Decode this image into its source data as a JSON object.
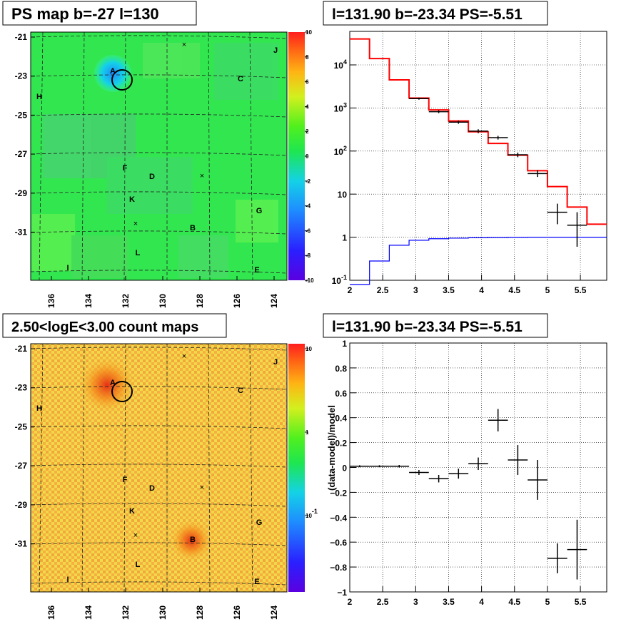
{
  "maps": [
    {
      "title": "PS map b=-27 l=130",
      "y_ticks": [
        "-21",
        "-23",
        "-25",
        "-27",
        "-29",
        "-31"
      ],
      "x_ticks": [
        "136",
        "134",
        "132",
        "130",
        "128",
        "126",
        "124"
      ],
      "colorbar_ticks": [
        "10",
        "8",
        "6",
        "4",
        "2",
        "0",
        "-2",
        "-4",
        "-6",
        "-8",
        "-10"
      ],
      "colorbar_scale": "linear",
      "sources": [
        "J",
        "C",
        "H",
        "F",
        "D",
        "K",
        "G",
        "B",
        "L",
        "I",
        "E",
        "A"
      ]
    },
    {
      "title": "2.50<logE<3.00 count maps",
      "y_ticks": [
        "-21",
        "-23",
        "-25",
        "-27",
        "-29",
        "-31"
      ],
      "x_ticks": [
        "136",
        "134",
        "132",
        "130",
        "128",
        "126",
        "124"
      ],
      "colorbar_ticks": [
        "10",
        "1",
        "10^-1"
      ],
      "colorbar_scale": "log",
      "sources": [
        "J",
        "C",
        "H",
        "F",
        "D",
        "K",
        "G",
        "B",
        "L",
        "I",
        "E",
        "A"
      ]
    }
  ],
  "chart_data": [
    {
      "type": "line",
      "title": "l=131.90 b=-23.34 PS=-5.51",
      "yscale": "log",
      "xlim": [
        2,
        5.9
      ],
      "ylim": [
        0.1,
        60000
      ],
      "grid": true,
      "x_ticks": [
        "2",
        "2.5",
        "3",
        "3.5",
        "4",
        "4.5",
        "5",
        "5.5"
      ],
      "y_ticks": [
        "10^-1",
        "1",
        "10",
        "10^2",
        "10^3",
        "10^4"
      ],
      "model_total": {
        "color": "#ff0000",
        "edges": [
          2.0,
          2.3,
          2.6,
          2.9,
          3.2,
          3.5,
          3.8,
          4.1,
          4.4,
          4.7,
          5.0,
          5.3,
          5.6,
          5.9
        ],
        "values": [
          40000,
          14000,
          4500,
          1700,
          900,
          500,
          280,
          150,
          80,
          35,
          15,
          5,
          2,
          2
        ]
      },
      "model_source": {
        "color": "#0000ff",
        "edges": [
          2.0,
          2.3,
          2.6,
          2.9,
          3.2,
          3.5,
          3.8,
          4.1,
          4.4,
          4.7,
          5.0,
          5.3,
          5.6,
          5.9
        ],
        "values": [
          0.08,
          0.28,
          0.65,
          0.85,
          0.92,
          0.95,
          0.97,
          0.98,
          0.99,
          1.0,
          1.0,
          1.0,
          1.0,
          1.0
        ]
      },
      "data_points": {
        "color": "#000000",
        "points": [
          {
            "x": 3.05,
            "xerr": 0.15,
            "y": 1650,
            "ylo": 1560,
            "yhi": 1740
          },
          {
            "x": 3.35,
            "xerr": 0.15,
            "y": 820,
            "ylo": 760,
            "yhi": 880
          },
          {
            "x": 3.65,
            "xerr": 0.15,
            "y": 470,
            "ylo": 430,
            "yhi": 510
          },
          {
            "x": 3.95,
            "xerr": 0.15,
            "y": 290,
            "ylo": 260,
            "yhi": 320
          },
          {
            "x": 4.25,
            "xerr": 0.15,
            "y": 205,
            "ylo": 185,
            "yhi": 225
          },
          {
            "x": 4.55,
            "xerr": 0.15,
            "y": 82,
            "ylo": 72,
            "yhi": 92
          },
          {
            "x": 4.85,
            "xerr": 0.15,
            "y": 30,
            "ylo": 25,
            "yhi": 36
          },
          {
            "x": 5.15,
            "xerr": 0.15,
            "y": 3.8,
            "ylo": 2.0,
            "yhi": 6.0
          },
          {
            "x": 5.45,
            "xerr": 0.15,
            "y": 1.9,
            "ylo": 0.6,
            "yhi": 3.8
          }
        ]
      }
    },
    {
      "type": "scatter",
      "title": "l=131.90 b=-23.34 PS=-5.51",
      "ylabel": "(data-model)/model",
      "xlim": [
        2,
        5.9
      ],
      "ylim": [
        -1,
        1
      ],
      "grid": true,
      "x_ticks": [
        "2",
        "2.5",
        "3",
        "3.5",
        "4",
        "4.5",
        "5",
        "5.5"
      ],
      "y_ticks": [
        "1",
        "0.8",
        "0.6",
        "0.4",
        "0.2",
        "0",
        "−0.2",
        "−0.4",
        "−0.6",
        "−0.8",
        "−1"
      ],
      "points": [
        {
          "x": 2.15,
          "xerr": 0.15,
          "y": 0.01,
          "yerr": 0.008
        },
        {
          "x": 2.45,
          "xerr": 0.15,
          "y": 0.01,
          "yerr": 0.008
        },
        {
          "x": 2.75,
          "xerr": 0.15,
          "y": 0.01,
          "yerr": 0.01
        },
        {
          "x": 3.05,
          "xerr": 0.15,
          "y": -0.04,
          "yerr": 0.02
        },
        {
          "x": 3.35,
          "xerr": 0.15,
          "y": -0.09,
          "yerr": 0.03
        },
        {
          "x": 3.65,
          "xerr": 0.15,
          "y": -0.05,
          "yerr": 0.04
        },
        {
          "x": 3.95,
          "xerr": 0.15,
          "y": 0.03,
          "yerr": 0.05
        },
        {
          "x": 4.25,
          "xerr": 0.15,
          "y": 0.38,
          "yerr": 0.09
        },
        {
          "x": 4.55,
          "xerr": 0.15,
          "y": 0.06,
          "yerr": 0.12
        },
        {
          "x": 4.85,
          "xerr": 0.15,
          "y": -0.1,
          "yerr": 0.16
        },
        {
          "x": 5.15,
          "xerr": 0.15,
          "y": -0.73,
          "yerr": 0.12
        },
        {
          "x": 5.45,
          "xerr": 0.15,
          "y": -0.66,
          "yerr": 0.24
        }
      ]
    }
  ]
}
